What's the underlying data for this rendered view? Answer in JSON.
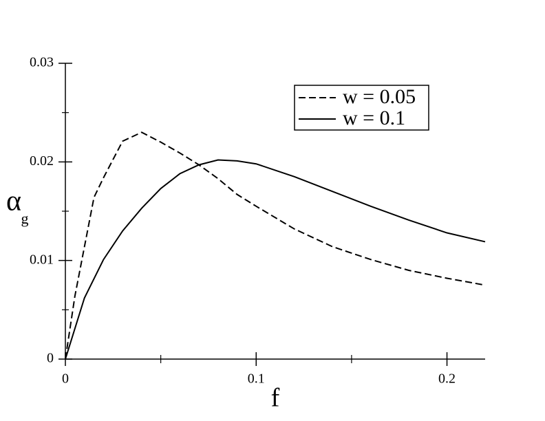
{
  "chart_data": {
    "type": "line",
    "xlabel": "f",
    "ylabel": {
      "text": "α",
      "subscript": "g"
    },
    "xlim": [
      0,
      0.22
    ],
    "ylim": [
      0,
      0.03
    ],
    "xticks": [
      0,
      0.1,
      0.2
    ],
    "yticks": [
      0,
      0.01,
      0.02,
      0.03
    ],
    "xminorticks": [
      0.05,
      0.15
    ],
    "yminorticks": [
      0.005,
      0.015,
      0.025
    ],
    "legend": "upper right",
    "series": [
      {
        "name": "w = 0.05",
        "color": "#000000",
        "dash": true,
        "x": [
          0,
          0.005,
          0.015,
          0.02,
          0.03,
          0.04,
          0.05,
          0.06,
          0.07,
          0.08,
          0.09,
          0.1,
          0.12,
          0.14,
          0.16,
          0.18,
          0.2,
          0.22
        ],
        "values": [
          0,
          0.0064,
          0.0164,
          0.0184,
          0.0221,
          0.023,
          0.022,
          0.0209,
          0.0197,
          0.0183,
          0.0167,
          0.0155,
          0.0132,
          0.0114,
          0.0101,
          0.009,
          0.0082,
          0.0075
        ]
      },
      {
        "name": "w = 0.1",
        "color": "#000000",
        "dash": false,
        "x": [
          0,
          0.01,
          0.02,
          0.03,
          0.04,
          0.05,
          0.06,
          0.07,
          0.08,
          0.09,
          0.1,
          0.12,
          0.14,
          0.16,
          0.18,
          0.2,
          0.22
        ],
        "values": [
          0,
          0.0062,
          0.0101,
          0.013,
          0.0153,
          0.0173,
          0.0188,
          0.0197,
          0.0202,
          0.0201,
          0.0198,
          0.0185,
          0.017,
          0.0155,
          0.0141,
          0.0128,
          0.0119
        ]
      }
    ]
  }
}
